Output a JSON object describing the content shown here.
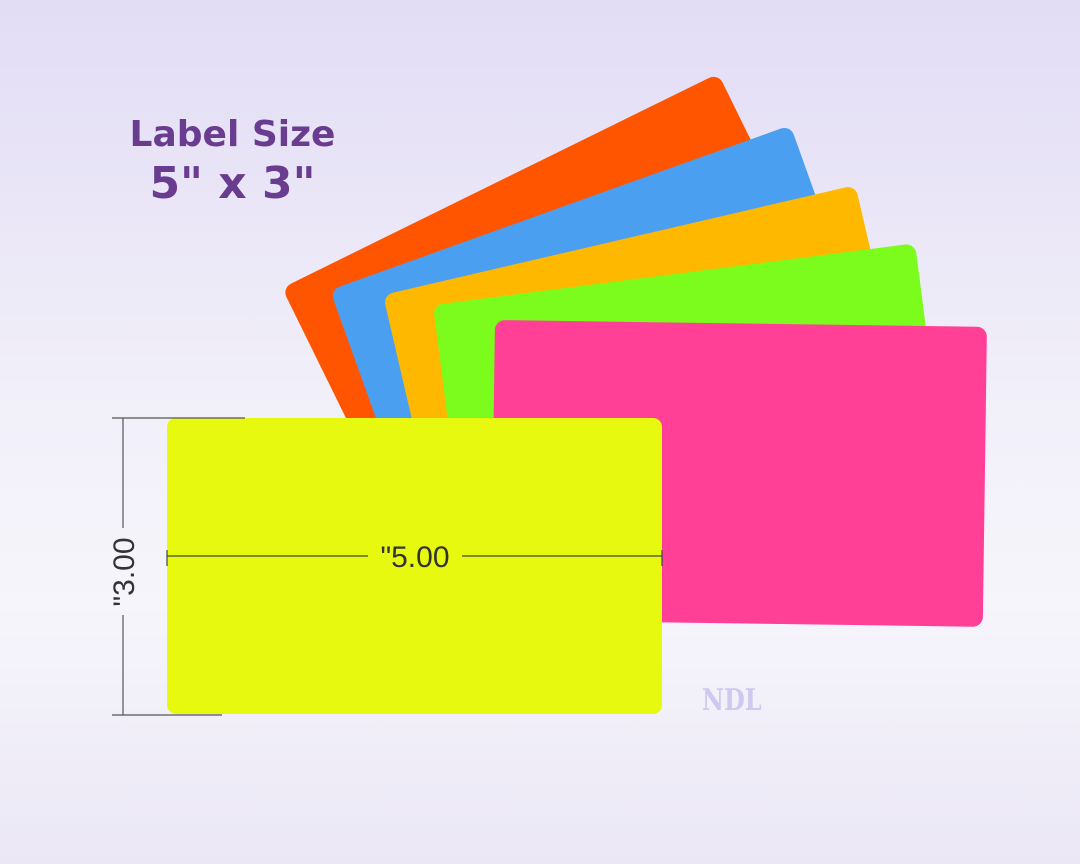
{
  "heading": {
    "line1": "Label Size",
    "line2": "5\" x 3\""
  },
  "labels": {
    "colors": [
      "#ff5500",
      "#4a9ff0",
      "#ffb800",
      "#7cfc1c",
      "#ff4096",
      "#e6f90f"
    ]
  },
  "dimensions": {
    "width_label": "\"5.00",
    "height_label": "\"3.00"
  },
  "watermark": "NDL"
}
